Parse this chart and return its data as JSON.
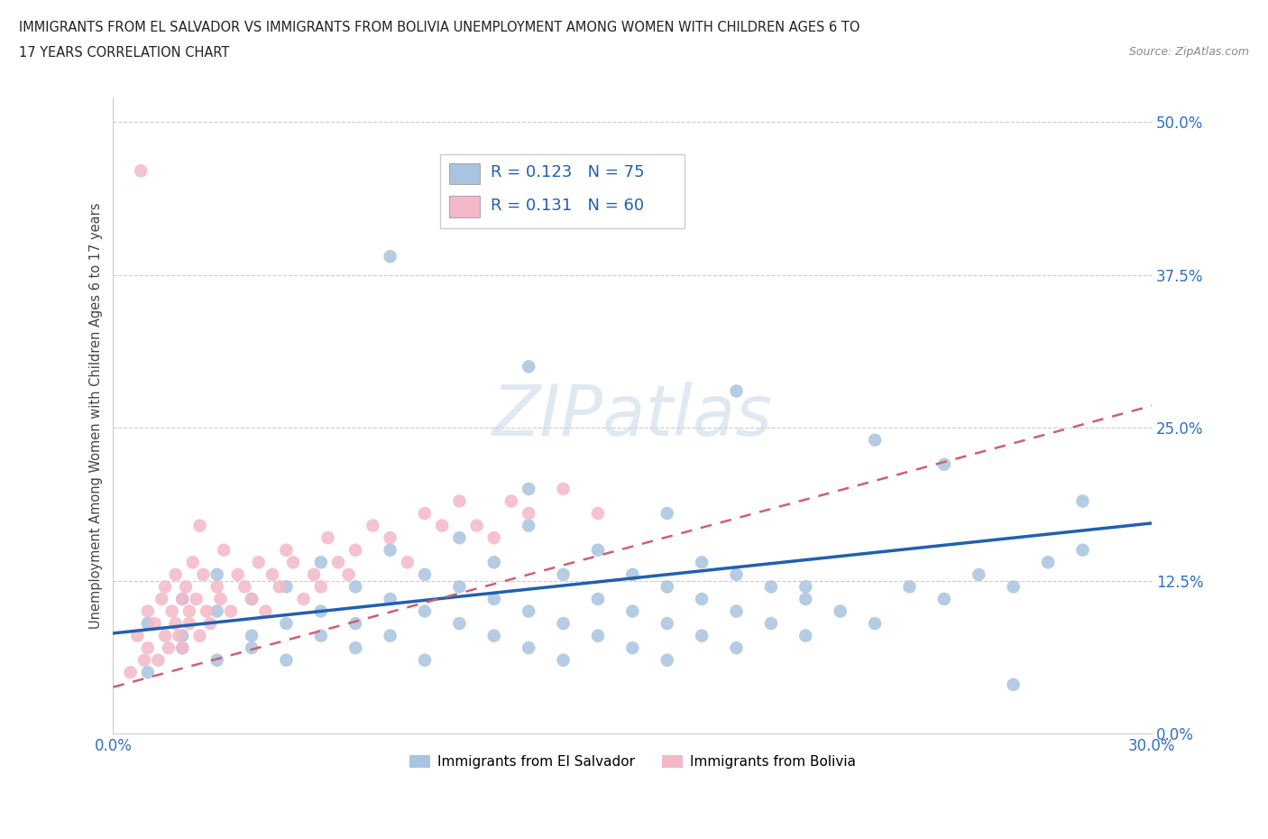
{
  "title_line1": "IMMIGRANTS FROM EL SALVADOR VS IMMIGRANTS FROM BOLIVIA UNEMPLOYMENT AMONG WOMEN WITH CHILDREN AGES 6 TO",
  "title_line2": "17 YEARS CORRELATION CHART",
  "source": "Source: ZipAtlas.com",
  "ylabel": "Unemployment Among Women with Children Ages 6 to 17 years",
  "xlim": [
    0.0,
    0.3
  ],
  "ylim": [
    0.0,
    0.52
  ],
  "yticks": [
    0.0,
    0.125,
    0.25,
    0.375,
    0.5
  ],
  "ytick_labels": [
    "0.0%",
    "12.5%",
    "25.0%",
    "37.5%",
    "50.0%"
  ],
  "xticks": [
    0.0,
    0.3
  ],
  "xtick_labels": [
    "0.0%",
    "30.0%"
  ],
  "R_blue": 0.123,
  "N_blue": 75,
  "R_pink": 0.131,
  "N_pink": 60,
  "blue_color": "#a8c4e0",
  "pink_color": "#f4b8c8",
  "line_blue": "#2060b0",
  "line_pink": "#d06070",
  "watermark": "ZIPatlas",
  "legend_label_blue": "Immigrants from El Salvador",
  "legend_label_pink": "Immigrants from Bolivia",
  "blue_line_x0": 0.0,
  "blue_line_y0": 0.082,
  "blue_line_x1": 0.3,
  "blue_line_y1": 0.172,
  "pink_line_x0": 0.0,
  "pink_line_y0": 0.038,
  "pink_line_x1": 0.3,
  "pink_line_y1": 0.268,
  "blue_scatter_x": [
    0.01,
    0.01,
    0.02,
    0.02,
    0.02,
    0.03,
    0.03,
    0.03,
    0.04,
    0.04,
    0.04,
    0.05,
    0.05,
    0.05,
    0.06,
    0.06,
    0.06,
    0.07,
    0.07,
    0.07,
    0.08,
    0.08,
    0.08,
    0.09,
    0.09,
    0.09,
    0.1,
    0.1,
    0.1,
    0.11,
    0.11,
    0.11,
    0.12,
    0.12,
    0.12,
    0.13,
    0.13,
    0.13,
    0.14,
    0.14,
    0.14,
    0.15,
    0.15,
    0.15,
    0.16,
    0.16,
    0.16,
    0.17,
    0.17,
    0.17,
    0.18,
    0.18,
    0.18,
    0.19,
    0.19,
    0.2,
    0.2,
    0.21,
    0.22,
    0.23,
    0.24,
    0.25,
    0.26,
    0.27,
    0.28,
    0.12,
    0.16,
    0.2,
    0.24,
    0.28,
    0.08,
    0.12,
    0.18,
    0.22,
    0.26
  ],
  "blue_scatter_y": [
    0.05,
    0.09,
    0.07,
    0.11,
    0.08,
    0.06,
    0.1,
    0.13,
    0.08,
    0.11,
    0.07,
    0.09,
    0.12,
    0.06,
    0.1,
    0.08,
    0.14,
    0.09,
    0.12,
    0.07,
    0.11,
    0.08,
    0.15,
    0.1,
    0.13,
    0.06,
    0.09,
    0.12,
    0.16,
    0.08,
    0.11,
    0.14,
    0.07,
    0.1,
    0.17,
    0.09,
    0.13,
    0.06,
    0.11,
    0.08,
    0.15,
    0.1,
    0.07,
    0.13,
    0.09,
    0.12,
    0.06,
    0.11,
    0.08,
    0.14,
    0.1,
    0.07,
    0.13,
    0.09,
    0.12,
    0.08,
    0.11,
    0.1,
    0.09,
    0.12,
    0.11,
    0.13,
    0.12,
    0.14,
    0.19,
    0.2,
    0.18,
    0.12,
    0.22,
    0.15,
    0.39,
    0.3,
    0.28,
    0.24,
    0.04
  ],
  "pink_scatter_x": [
    0.005,
    0.007,
    0.009,
    0.01,
    0.01,
    0.012,
    0.013,
    0.014,
    0.015,
    0.015,
    0.016,
    0.017,
    0.018,
    0.018,
    0.019,
    0.02,
    0.02,
    0.021,
    0.022,
    0.022,
    0.023,
    0.024,
    0.025,
    0.026,
    0.027,
    0.028,
    0.03,
    0.031,
    0.032,
    0.034,
    0.036,
    0.038,
    0.04,
    0.042,
    0.044,
    0.046,
    0.048,
    0.05,
    0.052,
    0.055,
    0.058,
    0.06,
    0.062,
    0.065,
    0.068,
    0.07,
    0.075,
    0.08,
    0.085,
    0.09,
    0.095,
    0.1,
    0.105,
    0.11,
    0.115,
    0.12,
    0.13,
    0.14,
    0.008,
    0.025
  ],
  "pink_scatter_y": [
    0.05,
    0.08,
    0.06,
    0.1,
    0.07,
    0.09,
    0.06,
    0.11,
    0.08,
    0.12,
    0.07,
    0.1,
    0.09,
    0.13,
    0.08,
    0.11,
    0.07,
    0.12,
    0.1,
    0.09,
    0.14,
    0.11,
    0.08,
    0.13,
    0.1,
    0.09,
    0.12,
    0.11,
    0.15,
    0.1,
    0.13,
    0.12,
    0.11,
    0.14,
    0.1,
    0.13,
    0.12,
    0.15,
    0.14,
    0.11,
    0.13,
    0.12,
    0.16,
    0.14,
    0.13,
    0.15,
    0.17,
    0.16,
    0.14,
    0.18,
    0.17,
    0.19,
    0.17,
    0.16,
    0.19,
    0.18,
    0.2,
    0.18,
    0.46,
    0.17
  ]
}
